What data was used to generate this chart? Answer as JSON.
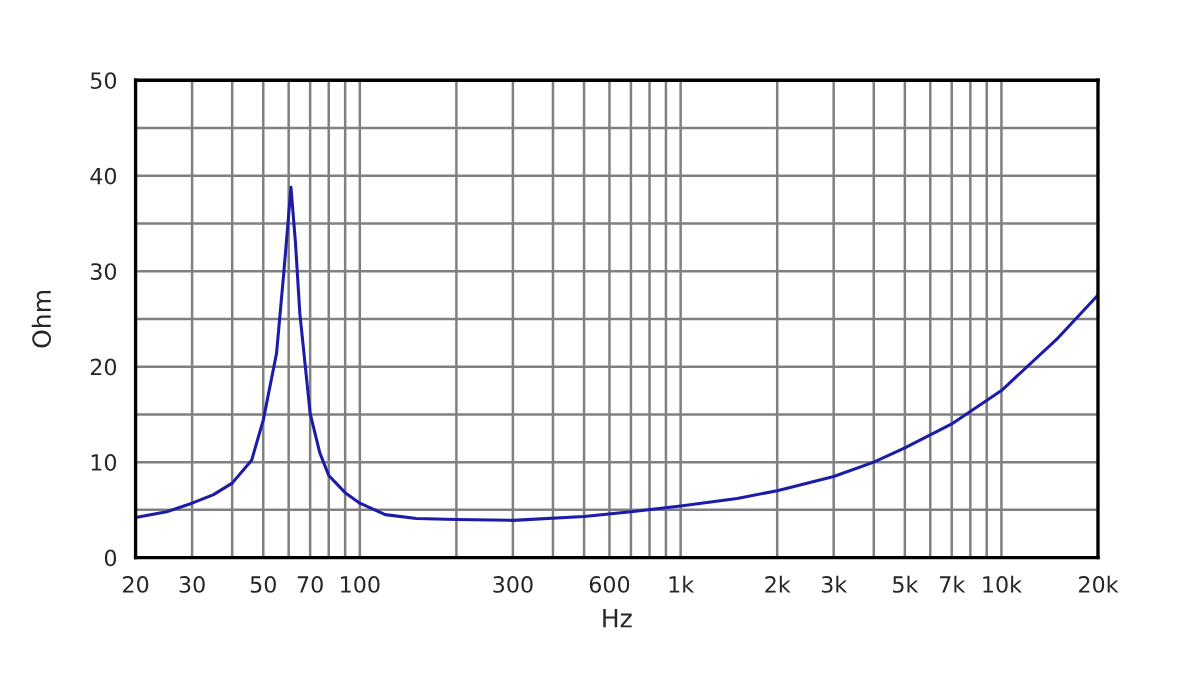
{
  "chart_data": {
    "type": "line",
    "xlabel": "Hz",
    "ylabel": "Ohm",
    "log": "x",
    "grid": true,
    "xlim": [
      20,
      20000
    ],
    "ylim": [
      0,
      50
    ],
    "xticks": [
      20,
      30,
      50,
      70,
      100,
      300,
      600,
      {
        "value": 1000,
        "label": "1k"
      },
      {
        "value": 2000,
        "label": "2k"
      },
      {
        "value": 3000,
        "label": "3k"
      },
      {
        "value": 5000,
        "label": "5k"
      },
      {
        "value": 7000,
        "label": "7k"
      },
      {
        "value": 10000,
        "label": "10k"
      },
      {
        "value": 20000,
        "label": "20k"
      }
    ],
    "yticks": [
      0,
      {
        "value": 5,
        "label": null
      },
      10,
      {
        "value": 15,
        "label": null
      },
      20,
      {
        "value": 25,
        "label": null
      },
      30,
      {
        "value": 35,
        "label": null
      },
      40,
      {
        "value": 45,
        "label": null
      },
      50
    ],
    "series": [
      {
        "color": "#1c1ca8",
        "x": [
          20,
          25,
          30,
          35,
          40,
          46,
          50,
          55,
          58,
          61,
          63,
          65,
          70,
          75,
          80,
          90,
          100,
          120,
          150,
          200,
          300,
          500,
          700,
          1000,
          1500,
          2000,
          3000,
          4000,
          5000,
          7000,
          10000,
          15000,
          20000
        ],
        "values": [
          4.2,
          4.8,
          5.7,
          6.6,
          7.8,
          10.2,
          14.4,
          21.4,
          30,
          38.8,
          33,
          25.6,
          15.1,
          11,
          8.6,
          6.8,
          5.7,
          4.5,
          4.1,
          4.0,
          3.9,
          4.3,
          4.8,
          5.4,
          6.2,
          7.0,
          8.5,
          10,
          11.5,
          14,
          17.5,
          23,
          27.5
        ]
      }
    ]
  }
}
